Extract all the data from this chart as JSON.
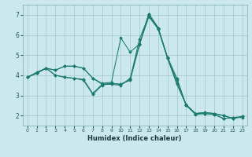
{
  "xlabel": "Humidex (Indice chaleur)",
  "bg_color": "#cce8ef",
  "grid_color": "#aacccc",
  "line_color": "#1a7a6e",
  "x_values": [
    0,
    1,
    2,
    3,
    4,
    5,
    6,
    7,
    8,
    9,
    10,
    11,
    12,
    13,
    14,
    15,
    16,
    17,
    18,
    19,
    20,
    21,
    22,
    23
  ],
  "series": [
    [
      3.9,
      4.1,
      4.35,
      4.25,
      4.45,
      4.45,
      4.35,
      3.85,
      3.55,
      3.6,
      3.55,
      3.8,
      5.8,
      6.95,
      6.3,
      4.85,
      3.6,
      2.5,
      2.1,
      2.15,
      2.1,
      2.0,
      1.85,
      1.95
    ],
    [
      3.9,
      4.15,
      4.35,
      4.0,
      3.9,
      3.85,
      3.75,
      3.05,
      3.5,
      3.6,
      3.55,
      3.75,
      5.5,
      7.05,
      6.35,
      4.9,
      3.85,
      2.5,
      2.05,
      2.1,
      2.05,
      1.85,
      1.9,
      1.95
    ],
    [
      3.9,
      4.1,
      4.35,
      4.25,
      4.45,
      4.45,
      4.35,
      3.85,
      3.6,
      3.65,
      5.85,
      5.15,
      5.55,
      6.9,
      6.3,
      4.85,
      3.55,
      2.55,
      2.1,
      2.15,
      2.1,
      2.0,
      1.85,
      1.95
    ],
    [
      3.9,
      4.1,
      4.35,
      4.0,
      3.9,
      3.85,
      3.8,
      3.1,
      3.55,
      3.55,
      3.5,
      3.85,
      5.55,
      7.05,
      6.35,
      4.85,
      3.75,
      2.5,
      2.1,
      2.1,
      2.05,
      1.85,
      1.9,
      1.9
    ]
  ],
  "ylim": [
    1.5,
    7.5
  ],
  "yticks": [
    2,
    3,
    4,
    5,
    6,
    7
  ],
  "xlim": [
    -0.5,
    23.5
  ],
  "xticks": [
    0,
    1,
    2,
    3,
    4,
    5,
    6,
    7,
    8,
    9,
    10,
    11,
    12,
    13,
    14,
    15,
    16,
    17,
    18,
    19,
    20,
    21,
    22,
    23
  ],
  "xtick_labels": [
    "0",
    "1",
    "2",
    "3",
    "4",
    "5",
    "6",
    "7",
    "8",
    "9",
    "10",
    "11",
    "12",
    "13",
    "14",
    "15",
    "16",
    "17",
    "18",
    "19",
    "20",
    "21",
    "22",
    "23"
  ]
}
